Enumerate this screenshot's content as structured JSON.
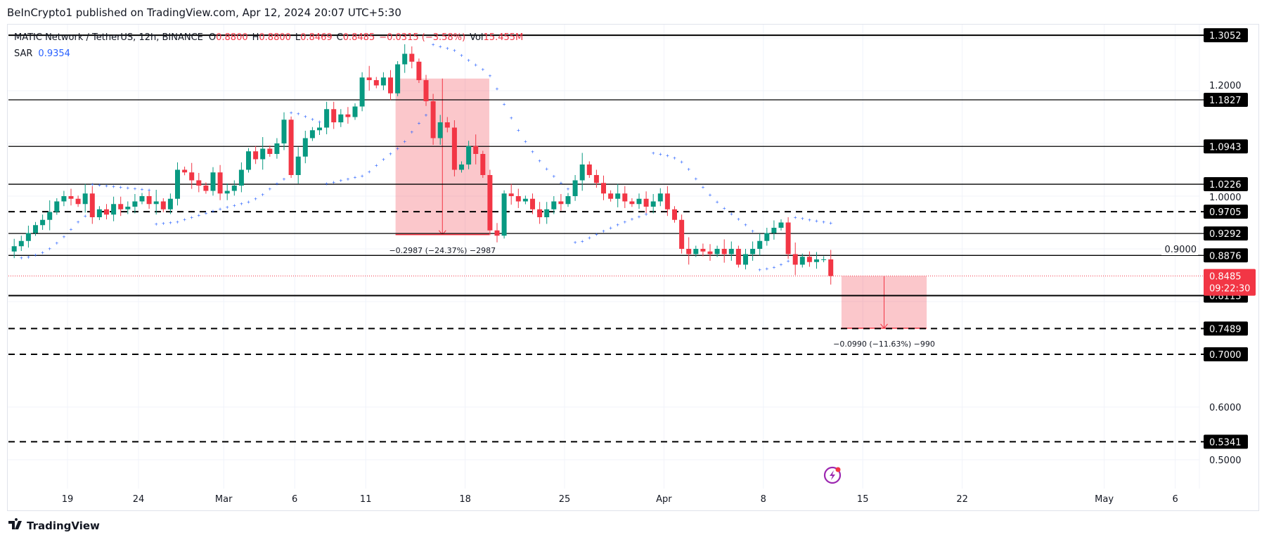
{
  "header": {
    "published": "BeInCrypto1 published on TradingView.com, Apr 12, 2024 20:07 UTC+5:30"
  },
  "legend": {
    "symbol": "MATIC Network / TetherUS, 12h, BINANCE",
    "o_label": "O",
    "o": "0.8800",
    "h_label": "H",
    "h": "0.8800",
    "l_label": "L",
    "l": "0.8469",
    "c_label": "C",
    "c": "0.8485",
    "change": "−0.0315 (−3.58%)",
    "vol_label": "Vol",
    "vol": "15.455M",
    "sar_label": "SAR",
    "sar": "0.9354"
  },
  "footer": {
    "brand": "TradingView"
  },
  "colors": {
    "up": "#089981",
    "down": "#f23645",
    "sar": "#2962ff",
    "box": "#f23645"
  },
  "chart_data": {
    "type": "candlestick",
    "interval": "12h",
    "start": "2024-02-15",
    "closes": [
      0.905,
      0.915,
      0.93,
      0.945,
      0.955,
      0.97,
      0.99,
      1.0,
      0.995,
      0.985,
      1.005,
      0.96,
      0.975,
      0.965,
      0.985,
      0.975,
      0.98,
      0.99,
      1.0,
      0.985,
      0.99,
      0.975,
      0.995,
      1.05,
      1.045,
      1.03,
      1.02,
      1.01,
      1.045,
      1.005,
      1.01,
      1.02,
      1.05,
      1.085,
      1.07,
      1.09,
      1.08,
      1.1,
      1.145,
      1.04,
      1.075,
      1.11,
      1.125,
      1.13,
      1.165,
      1.14,
      1.155,
      1.15,
      1.17,
      1.225,
      1.22,
      1.21,
      1.225,
      1.195,
      1.25,
      1.27,
      1.255,
      1.22,
      1.18,
      1.11,
      1.14,
      1.13,
      1.05,
      1.06,
      1.095,
      1.08,
      1.04,
      0.935,
      0.925,
      1.005,
      1.0,
      0.99,
      0.995,
      0.975,
      0.96,
      0.975,
      0.99,
      0.985,
      1.0,
      1.03,
      1.06,
      1.04,
      1.025,
      1.005,
      0.995,
      1.005,
      0.99,
      0.985,
      0.995,
      0.98,
      0.99,
      1.005,
      0.975,
      0.955,
      0.9,
      0.89,
      0.9,
      0.895,
      0.89,
      0.9,
      0.89,
      0.9,
      0.87,
      0.89,
      0.9,
      0.915,
      0.93,
      0.94,
      0.95,
      0.89,
      0.87,
      0.885,
      0.875,
      0.88,
      0.88,
      0.8485
    ],
    "first_open": 0.895,
    "current_price": "0.8485",
    "countdown": "09:22:30",
    "price_axis_ticks": [
      "1.2000",
      "1.0000",
      "0.9000",
      "0.6000",
      "0.5000"
    ],
    "price_axis_values": [
      1.2,
      1.0,
      0.9,
      0.6,
      0.5
    ],
    "time_ticks": [
      {
        "label": "19",
        "day": 4
      },
      {
        "label": "24",
        "day": 9
      },
      {
        "label": "Mar",
        "day": 15
      },
      {
        "label": "6",
        "day": 20
      },
      {
        "label": "11",
        "day": 25
      },
      {
        "label": "18",
        "day": 32
      },
      {
        "label": "25",
        "day": 39
      },
      {
        "label": "Apr",
        "day": 46
      },
      {
        "label": "8",
        "day": 53
      },
      {
        "label": "15",
        "day": 60
      },
      {
        "label": "22",
        "day": 67
      },
      {
        "label": "May",
        "day": 77
      },
      {
        "label": "6",
        "day": 82
      }
    ],
    "levels": [
      {
        "price": 1.3052,
        "label": "1.3052",
        "style": "solid"
      },
      {
        "price": 1.1827,
        "label": "1.1827",
        "style": "solid"
      },
      {
        "price": 1.0943,
        "label": "1.0943",
        "style": "solid"
      },
      {
        "price": 1.0226,
        "label": "1.0226",
        "style": "solid"
      },
      {
        "price": 0.9705,
        "label": "0.9705",
        "style": "dashed"
      },
      {
        "price": 0.9292,
        "label": "0.9292",
        "style": "solid"
      },
      {
        "price": 0.8876,
        "label": "0.8876",
        "style": "solid"
      },
      {
        "price": 0.8113,
        "label": "0.8113",
        "style": "solid"
      },
      {
        "price": 0.7489,
        "label": "0.7489",
        "style": "dashed"
      },
      {
        "price": 0.7,
        "label": "0.7000",
        "style": "dashed"
      },
      {
        "price": 0.5341,
        "label": "0.5341",
        "style": "dashed"
      }
    ],
    "measurements": [
      {
        "from_day": 27.1,
        "to_day": 33.7,
        "top": 1.223,
        "bottom": 0.927,
        "label": "−0.2987 (−24.37%) −2987"
      },
      {
        "from_day": 58.5,
        "to_day": 64.5,
        "top": 0.8485,
        "bottom": 0.7495,
        "label": "−0.0990 (−11.63%) −990"
      }
    ]
  }
}
